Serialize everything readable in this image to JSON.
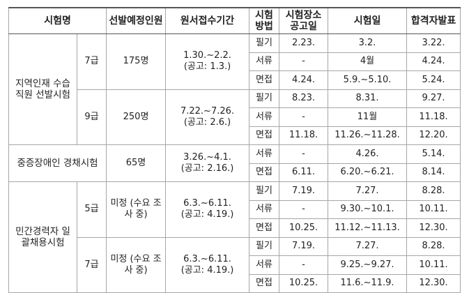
{
  "header": [
    "시험명",
    "선발예정인원",
    "원서접수기간",
    "시험방법",
    "시험장소공고일",
    "시험일",
    "합격자발표"
  ],
  "groups": [
    {
      "name": "지역인재 수습직원 선발시험",
      "tracks": [
        {
          "grade": "7급",
          "quota": "175명",
          "period": "1.30.~2.2.",
          "notice": "(공고: 1.3.)",
          "rows": [
            [
              "필기",
              "2.23.",
              "3.2.",
              "3.22."
            ],
            [
              "서류",
              "-",
              "4월",
              "4.24."
            ],
            [
              "면접",
              "4.24.",
              "5.9.~5.10.",
              "5.24."
            ]
          ]
        },
        {
          "grade": "9급",
          "quota": "250명",
          "period": "7.22.~7.26.",
          "notice": "(공고: 2.6.)",
          "rows": [
            [
              "필기",
              "8.23.",
              "8.31.",
              "9.27."
            ],
            [
              "서류",
              "-",
              "11월",
              "11.18."
            ],
            [
              "면접",
              "11.18.",
              "11.26.~11.28.",
              "12.20."
            ]
          ]
        }
      ]
    },
    {
      "name": "중증장애인 경채시험",
      "tracks": [
        {
          "quota": "65명",
          "period": "3.26.~4.1.",
          "notice": "(공고: 2.16.)",
          "rows": [
            [
              "서류",
              "-",
              "4.26.",
              "5.14."
            ],
            [
              "면접",
              "6.11.",
              "6.20.~6.21.",
              "8.14."
            ]
          ]
        }
      ]
    },
    {
      "name": "민간경력자 일괄채용시험",
      "tracks": [
        {
          "grade": "5급",
          "quota": "미정 (수요 조사 중)",
          "period": "6.3.~6.11.",
          "notice": "(공고: 4.19.)",
          "rows": [
            [
              "필기",
              "7.19.",
              "7.27.",
              "8.28."
            ],
            [
              "서류",
              "-",
              "9.30.~10.1.",
              "10.11."
            ],
            [
              "면접",
              "10.25.",
              "11.12.~11.13.",
              "12.30."
            ]
          ]
        },
        {
          "grade": "7급",
          "quota": "미정 (수요 조사 중)",
          "period": "6.3.~6.11.",
          "notice": "(공고: 4.19.)",
          "rows": [
            [
              "필기",
              "7.19.",
              "7.27.",
              "8.28."
            ],
            [
              "서류",
              "-",
              "9.25.~9.27.",
              "10.11."
            ],
            [
              "면접",
              "10.25.",
              "11.6.~11.9.",
              "12.30."
            ]
          ]
        }
      ]
    }
  ]
}
